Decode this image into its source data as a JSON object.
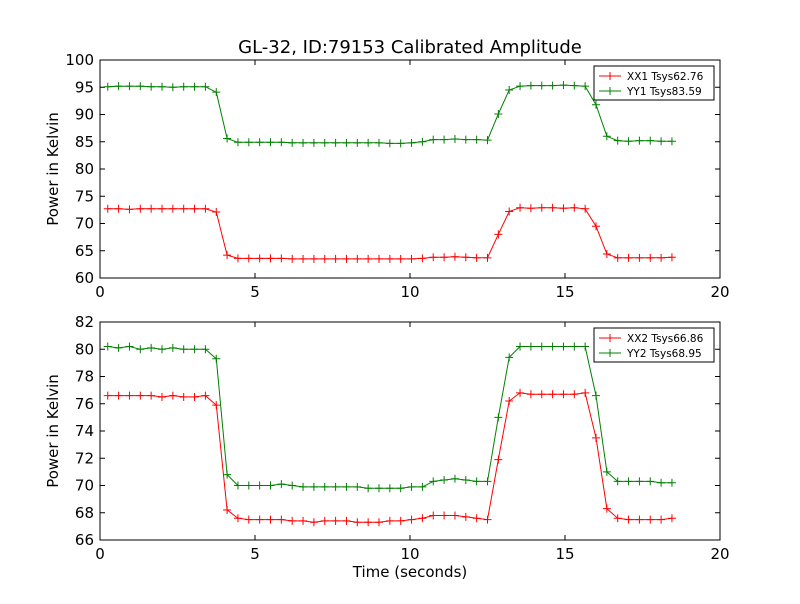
{
  "figure": {
    "title": "GL-32, ID:79153 Calibrated Amplitude"
  },
  "chart_data": [
    {
      "type": "line",
      "title": "GL-32, ID:79153 Calibrated Amplitude",
      "xlabel": "",
      "ylabel": "Power in Kelvin",
      "xlim": [
        0,
        20
      ],
      "ylim": [
        60,
        100
      ],
      "xticks": [
        "0",
        "5",
        "10",
        "15",
        "20"
      ],
      "yticks": [
        "60",
        "65",
        "70",
        "75",
        "80",
        "85",
        "90",
        "95",
        "100"
      ],
      "legend_position": "top-right",
      "grid": false,
      "series": [
        {
          "name": "XX1 Tsys62.76",
          "color": "#ff0000",
          "marker": "plus",
          "x": [
            0.25,
            0.6,
            0.95,
            1.3,
            1.65,
            2.0,
            2.35,
            2.7,
            3.05,
            3.4,
            3.75,
            4.1,
            4.45,
            4.8,
            5.15,
            5.5,
            5.85,
            6.2,
            6.55,
            6.9,
            7.25,
            7.6,
            7.95,
            8.3,
            8.65,
            9.0,
            9.35,
            9.7,
            10.05,
            10.4,
            10.75,
            11.1,
            11.45,
            11.8,
            12.15,
            12.5,
            12.85,
            13.2,
            13.55,
            13.9,
            14.25,
            14.6,
            14.95,
            15.3,
            15.65,
            16.0,
            16.35,
            16.7,
            17.05,
            17.4,
            17.75,
            18.1,
            18.45
          ],
          "y": [
            72.7,
            72.7,
            72.6,
            72.7,
            72.7,
            72.7,
            72.7,
            72.7,
            72.7,
            72.7,
            72.1,
            64.2,
            63.6,
            63.6,
            63.6,
            63.6,
            63.6,
            63.5,
            63.5,
            63.5,
            63.5,
            63.5,
            63.5,
            63.5,
            63.5,
            63.5,
            63.5,
            63.5,
            63.5,
            63.6,
            63.8,
            63.8,
            63.9,
            63.8,
            63.7,
            63.7,
            68.0,
            72.2,
            72.9,
            72.8,
            72.9,
            72.9,
            72.8,
            72.9,
            72.7,
            69.5,
            64.4,
            63.7,
            63.7,
            63.7,
            63.7,
            63.7,
            63.8
          ]
        },
        {
          "name": "YY1 Tsys83.59",
          "color": "#008000",
          "marker": "plus",
          "x": [
            0.25,
            0.6,
            0.95,
            1.3,
            1.65,
            2.0,
            2.35,
            2.7,
            3.05,
            3.4,
            3.75,
            4.1,
            4.45,
            4.8,
            5.15,
            5.5,
            5.85,
            6.2,
            6.55,
            6.9,
            7.25,
            7.6,
            7.95,
            8.3,
            8.65,
            9.0,
            9.35,
            9.7,
            10.05,
            10.4,
            10.75,
            11.1,
            11.45,
            11.8,
            12.15,
            12.5,
            12.85,
            13.2,
            13.55,
            13.9,
            14.25,
            14.6,
            14.95,
            15.3,
            15.65,
            16.0,
            16.35,
            16.7,
            17.05,
            17.4,
            17.75,
            18.1,
            18.45
          ],
          "y": [
            95.1,
            95.2,
            95.2,
            95.2,
            95.1,
            95.1,
            95.0,
            95.1,
            95.1,
            95.1,
            94.1,
            85.6,
            84.9,
            84.9,
            84.9,
            84.9,
            84.9,
            84.8,
            84.8,
            84.8,
            84.8,
            84.8,
            84.8,
            84.8,
            84.8,
            84.8,
            84.7,
            84.7,
            84.8,
            85.0,
            85.4,
            85.4,
            85.5,
            85.4,
            85.4,
            85.3,
            90.1,
            94.5,
            95.2,
            95.3,
            95.3,
            95.3,
            95.4,
            95.3,
            95.2,
            91.8,
            86.0,
            85.2,
            85.1,
            85.2,
            85.2,
            85.1,
            85.1
          ]
        }
      ]
    },
    {
      "type": "line",
      "title": "",
      "xlabel": "Time (seconds)",
      "ylabel": "Power in Kelvin",
      "xlim": [
        0,
        20
      ],
      "ylim": [
        66,
        82
      ],
      "xticks": [
        "0",
        "5",
        "10",
        "15",
        "20"
      ],
      "yticks": [
        "66",
        "68",
        "70",
        "72",
        "74",
        "76",
        "78",
        "80",
        "82"
      ],
      "legend_position": "top-right",
      "grid": false,
      "series": [
        {
          "name": "XX2 Tsys66.86",
          "color": "#ff0000",
          "marker": "plus",
          "x": [
            0.25,
            0.6,
            0.95,
            1.3,
            1.65,
            2.0,
            2.35,
            2.7,
            3.05,
            3.4,
            3.75,
            4.1,
            4.45,
            4.8,
            5.15,
            5.5,
            5.85,
            6.2,
            6.55,
            6.9,
            7.25,
            7.6,
            7.95,
            8.3,
            8.65,
            9.0,
            9.35,
            9.7,
            10.05,
            10.4,
            10.75,
            11.1,
            11.45,
            11.8,
            12.15,
            12.5,
            12.85,
            13.2,
            13.55,
            13.9,
            14.25,
            14.6,
            14.95,
            15.3,
            15.65,
            16.0,
            16.35,
            16.7,
            17.05,
            17.4,
            17.75,
            18.1,
            18.45
          ],
          "y": [
            76.6,
            76.6,
            76.6,
            76.6,
            76.6,
            76.5,
            76.6,
            76.5,
            76.5,
            76.6,
            75.9,
            68.2,
            67.6,
            67.5,
            67.5,
            67.5,
            67.5,
            67.4,
            67.4,
            67.3,
            67.4,
            67.4,
            67.4,
            67.3,
            67.3,
            67.3,
            67.4,
            67.4,
            67.5,
            67.6,
            67.8,
            67.8,
            67.8,
            67.7,
            67.6,
            67.5,
            71.9,
            76.2,
            76.8,
            76.7,
            76.7,
            76.7,
            76.7,
            76.7,
            76.8,
            73.5,
            68.3,
            67.6,
            67.5,
            67.5,
            67.5,
            67.5,
            67.6
          ]
        },
        {
          "name": "YY2 Tsys68.95",
          "color": "#008000",
          "marker": "plus",
          "x": [
            0.25,
            0.6,
            0.95,
            1.3,
            1.65,
            2.0,
            2.35,
            2.7,
            3.05,
            3.4,
            3.75,
            4.1,
            4.45,
            4.8,
            5.15,
            5.5,
            5.85,
            6.2,
            6.55,
            6.9,
            7.25,
            7.6,
            7.95,
            8.3,
            8.65,
            9.0,
            9.35,
            9.7,
            10.05,
            10.4,
            10.75,
            11.1,
            11.45,
            11.8,
            12.15,
            12.5,
            12.85,
            13.2,
            13.55,
            13.9,
            14.25,
            14.6,
            14.95,
            15.3,
            15.65,
            16.0,
            16.35,
            16.7,
            17.05,
            17.4,
            17.75,
            18.1,
            18.45
          ],
          "y": [
            80.2,
            80.1,
            80.2,
            80.0,
            80.1,
            80.0,
            80.1,
            80.0,
            80.0,
            80.0,
            79.3,
            70.8,
            70.0,
            70.0,
            70.0,
            70.0,
            70.1,
            70.0,
            69.9,
            69.9,
            69.9,
            69.9,
            69.9,
            69.9,
            69.8,
            69.8,
            69.8,
            69.8,
            69.9,
            69.9,
            70.3,
            70.4,
            70.5,
            70.4,
            70.3,
            70.3,
            75.0,
            79.4,
            80.2,
            80.2,
            80.2,
            80.2,
            80.2,
            80.2,
            80.2,
            76.6,
            71.0,
            70.3,
            70.3,
            70.3,
            70.3,
            70.2,
            70.2
          ]
        }
      ]
    }
  ]
}
